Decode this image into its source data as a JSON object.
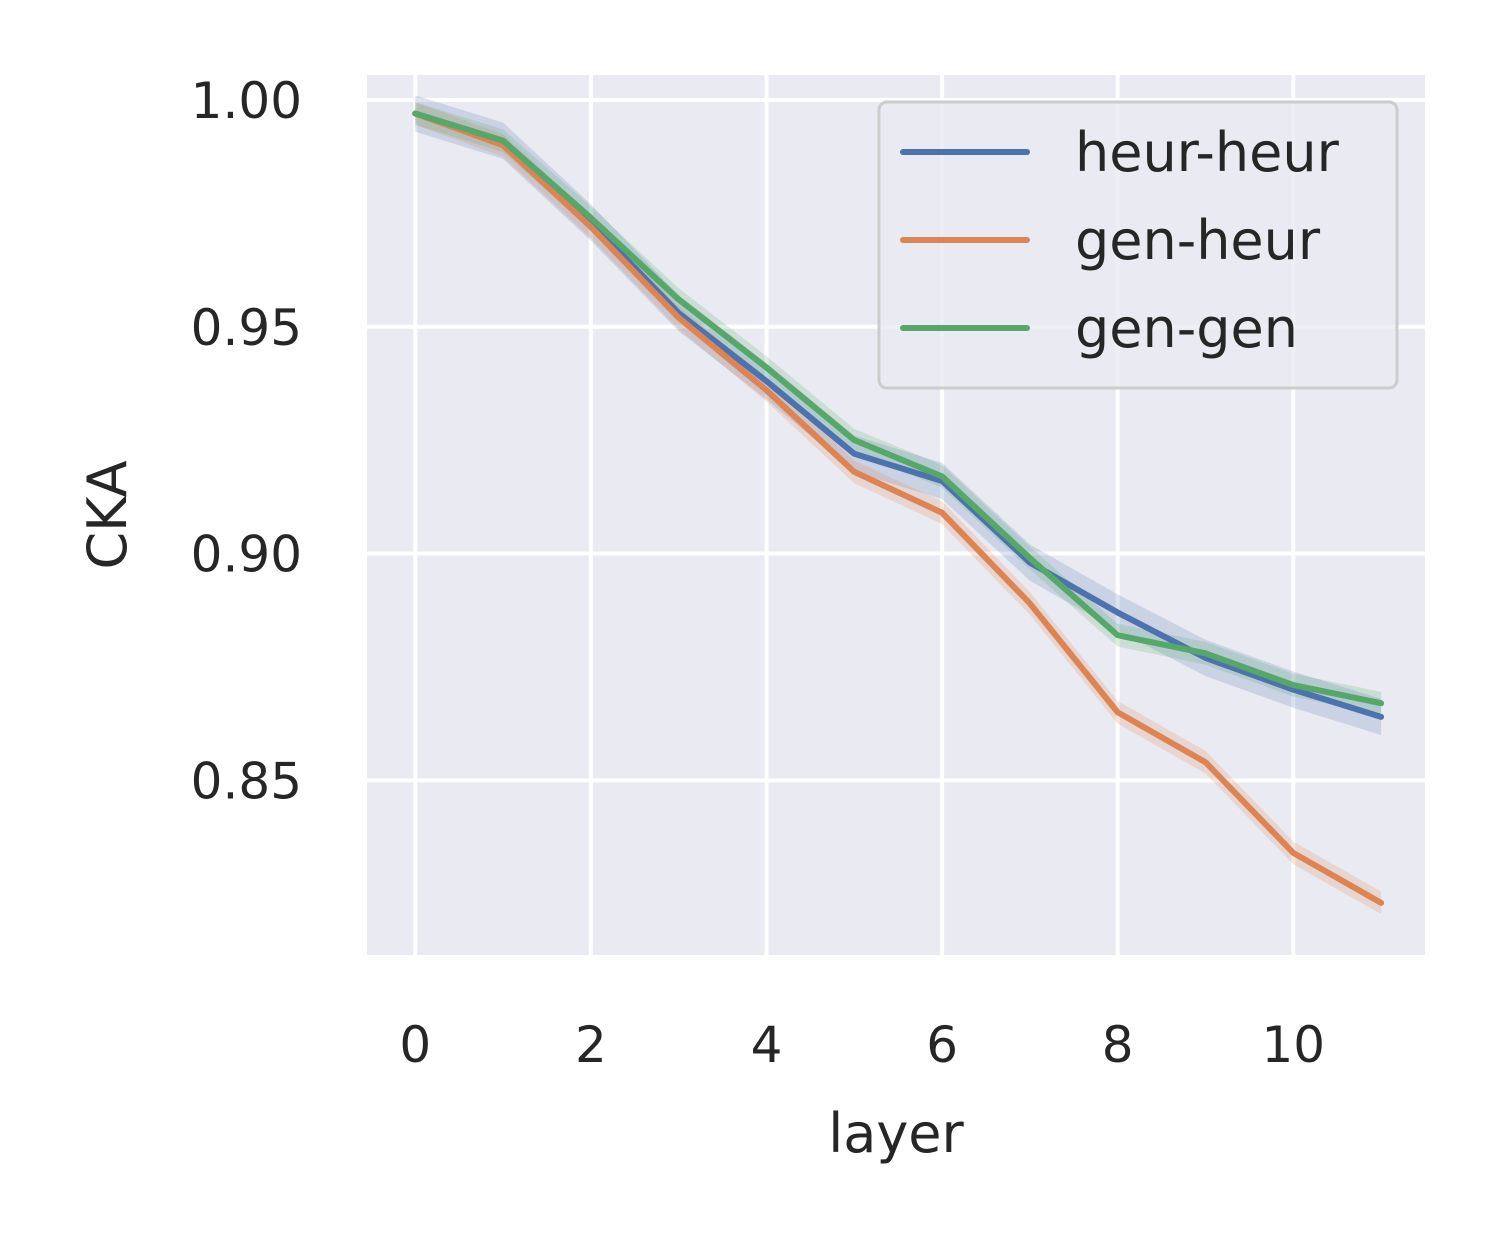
{
  "chart_data": {
    "type": "line",
    "title": "",
    "xlabel": "layer",
    "ylabel": "CKA",
    "xlim": [
      -0.55,
      11.5
    ],
    "ylim": [
      0.8115,
      1.0055
    ],
    "x_ticks": [
      0,
      2,
      4,
      6,
      8,
      10
    ],
    "x_tick_labels": [
      "0",
      "2",
      "4",
      "6",
      "8",
      "10"
    ],
    "y_ticks": [
      0.85,
      0.9,
      0.95,
      1.0
    ],
    "y_tick_labels": [
      "0.85",
      "0.90",
      "0.95",
      "1.00"
    ],
    "grid": true,
    "background": "#eaeaf2",
    "legend_position": "top-right",
    "x": [
      0,
      1,
      2,
      3,
      4,
      5,
      6,
      7,
      8,
      9,
      10,
      11
    ],
    "series": [
      {
        "name": "heur-heur",
        "color": "#4c72b0",
        "values": [
          0.997,
          0.991,
          0.973,
          0.953,
          0.938,
          0.922,
          0.916,
          0.898,
          0.887,
          0.877,
          0.87,
          0.864
        ],
        "band": 0.004
      },
      {
        "name": "gen-heur",
        "color": "#dd8452",
        "values": [
          0.997,
          0.99,
          0.972,
          0.952,
          0.936,
          0.918,
          0.909,
          0.889,
          0.865,
          0.854,
          0.834,
          0.823
        ],
        "band": 0.0025
      },
      {
        "name": "gen-gen",
        "color": "#55a868",
        "values": [
          0.997,
          0.991,
          0.974,
          0.956,
          0.941,
          0.925,
          0.917,
          0.899,
          0.882,
          0.878,
          0.871,
          0.867
        ],
        "band": 0.0025
      }
    ]
  }
}
